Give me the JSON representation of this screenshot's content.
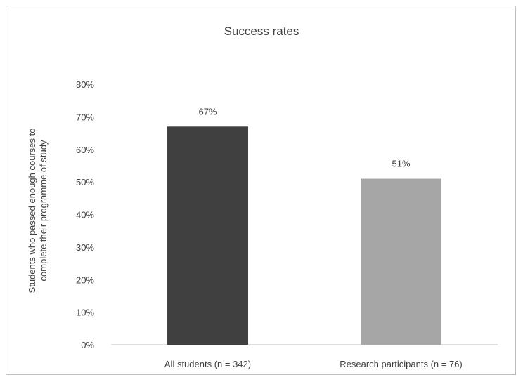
{
  "chart_data": {
    "type": "bar",
    "title": "Success rates",
    "ylabel_lines": [
      "Students who passed enough courses to",
      "complete their programme of study"
    ],
    "xlabel": "",
    "categories": [
      "All students (n = 342)",
      "Research participants (n = 76)"
    ],
    "values": [
      67,
      51
    ],
    "value_labels": [
      "67%",
      "51%"
    ],
    "bar_colors": [
      "#404040",
      "#a6a6a6"
    ],
    "y_ticks": [
      0,
      10,
      20,
      30,
      40,
      50,
      60,
      70,
      80
    ],
    "y_tick_labels": [
      "0%",
      "10%",
      "20%",
      "30%",
      "40%",
      "50%",
      "60%",
      "70%",
      "80%"
    ],
    "ylim": [
      0,
      80
    ],
    "grid": false,
    "legend": "none"
  }
}
